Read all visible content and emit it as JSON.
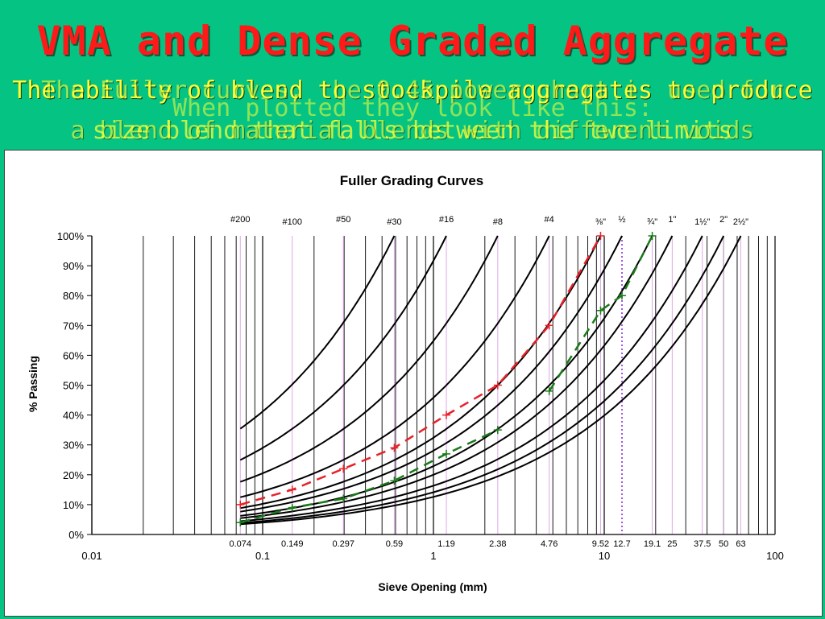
{
  "slide": {
    "title": "VMA and Dense Graded Aggregate",
    "overlay_lines": [
      "The ability of blend to stockpile aggregates to produce",
      "size blend that falls between the two limits",
      "The Fuller curves, the 0.45 power chart is used for",
      "a blend of material blends with different voids",
      "When plotted they look like this:"
    ]
  },
  "chart_data": {
    "type": "line",
    "title": "Fuller Grading Curves",
    "xlabel": "Sieve Opening (mm)",
    "ylabel": "% Passing",
    "xscale": "log",
    "xlim": [
      0.01,
      100
    ],
    "ylim": [
      0,
      100
    ],
    "grid": true,
    "x_major_ticks": [
      "0.01",
      "0.1",
      "1",
      "10",
      "100"
    ],
    "y_ticks": [
      "0%",
      "10%",
      "20%",
      "30%",
      "40%",
      "50%",
      "60%",
      "70%",
      "80%",
      "90%",
      "100%"
    ],
    "sieve_openings": [
      "0.074",
      "0.149",
      "0.297",
      "0.59",
      "1.19",
      "2.38",
      "4.76",
      "9.52",
      "12.7",
      "19.1",
      "25",
      "37.5",
      "50",
      "63"
    ],
    "sieve_names_top": [
      {
        "x": 0.074,
        "label": "#200"
      },
      {
        "x": 0.149,
        "label": "#100"
      },
      {
        "x": 0.297,
        "label": "#50"
      },
      {
        "x": 0.59,
        "label": "#30"
      },
      {
        "x": 1.19,
        "label": "#16"
      },
      {
        "x": 2.38,
        "label": "#8"
      },
      {
        "x": 4.76,
        "label": "#4"
      },
      {
        "x": 9.52,
        "label": "⅜\""
      },
      {
        "x": 12.7,
        "label": "½"
      },
      {
        "x": 19.1,
        "label": "¾\""
      },
      {
        "x": 25,
        "label": "1\""
      },
      {
        "x": 37.5,
        "label": "1½\""
      },
      {
        "x": 50,
        "label": "2\""
      },
      {
        "x": 63,
        "label": "2½\""
      }
    ],
    "fuller_exponent": 0.5,
    "fuller_max_sizes": [
      0.59,
      1.19,
      2.38,
      4.76,
      9.52,
      12.7,
      19.1,
      25,
      37.5,
      50,
      63
    ],
    "series": [
      {
        "values": [
          [
            0.074,
            10
          ],
          [
            0.149,
            15
          ],
          [
            0.297,
            22
          ],
          [
            0.59,
            29
          ],
          [
            1.19,
            40
          ],
          [
            2.38,
            50
          ],
          [
            4.76,
            70
          ],
          [
            9.52,
            100
          ]
        ],
        "color": "#e8212a",
        "style": "dashed"
      },
      {
        "values": [
          [
            0.074,
            4
          ],
          [
            0.149,
            9
          ],
          [
            0.297,
            12
          ],
          [
            0.59,
            18
          ],
          [
            1.19,
            27
          ],
          [
            2.38,
            35
          ]
        ],
        "color": "#1a7a1a",
        "style": "dashed"
      },
      {
        "values": [
          [
            4.76,
            48
          ],
          [
            9.52,
            75
          ],
          [
            12.7,
            80
          ],
          [
            19.1,
            100
          ]
        ],
        "color": "#1a7a1a",
        "style": "dashed"
      }
    ],
    "max_density_line_x": 12.7
  }
}
